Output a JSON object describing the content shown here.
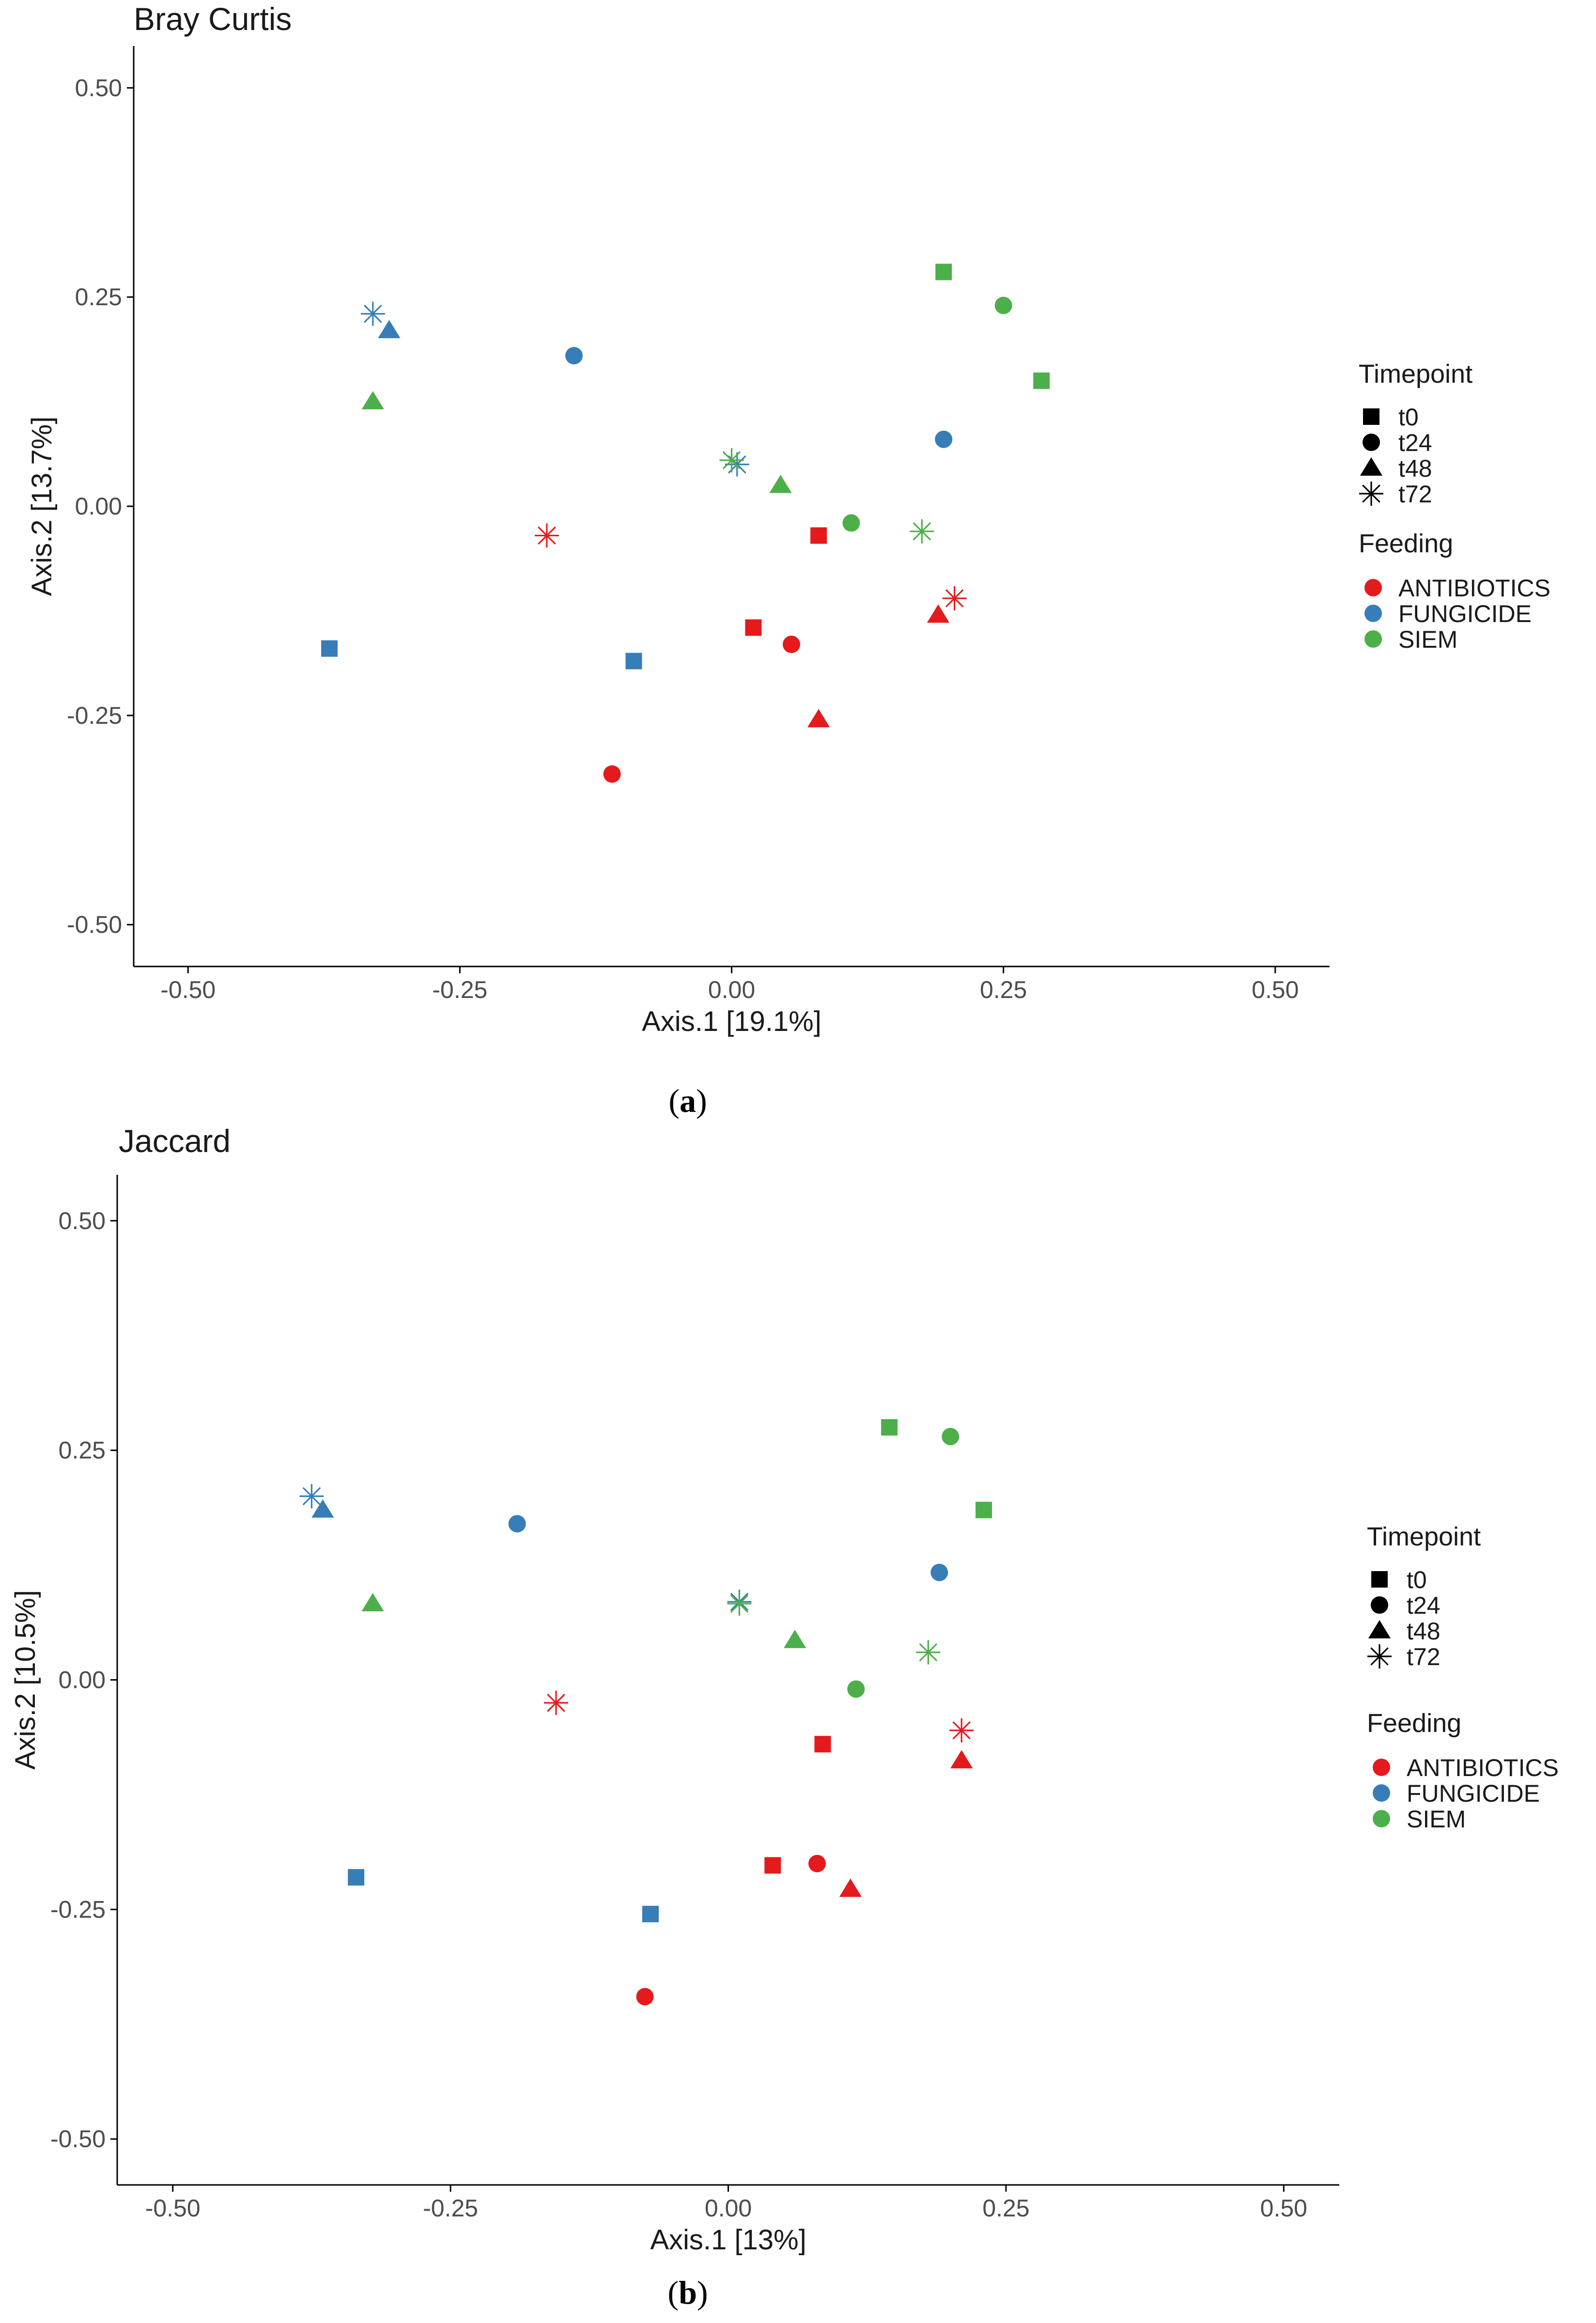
{
  "colors": {
    "ANTIBIOTICS": "#E41A1C",
    "FUNGICIDE": "#377EB8",
    "SIEM": "#4DAF4A",
    "axis": "#000000",
    "text": "#1a1a1a",
    "tick_text": "#4d4d4d",
    "legend_shape": "#000000"
  },
  "chart_data": [
    {
      "type": "scatter",
      "title": "Bray Curtis",
      "caption": "a",
      "caption_open": "(",
      "caption_close": ")",
      "xlabel": "Axis.1   [19.1%]",
      "ylabel": "Axis.2   [13.7%]",
      "xlim": [
        -0.55,
        0.55
      ],
      "ylim": [
        -0.55,
        0.55
      ],
      "xticks": [
        -0.5,
        -0.25,
        0.0,
        0.25,
        0.5
      ],
      "yticks": [
        -0.5,
        -0.25,
        0.0,
        0.25,
        0.5
      ],
      "xtick_labels": [
        "-0.50",
        "-0.25",
        "0.00",
        "0.25",
        "0.50"
      ],
      "ytick_labels": [
        "-0.50",
        "-0.25",
        "0.00",
        "0.25",
        "0.50"
      ],
      "grid": false,
      "legend": {
        "placement": "right",
        "shape_title": "Timepoint",
        "shapes": [
          {
            "label": "t0",
            "shape": "square"
          },
          {
            "label": "t24",
            "shape": "circle"
          },
          {
            "label": "t48",
            "shape": "triangle"
          },
          {
            "label": "t72",
            "shape": "star"
          }
        ],
        "color_title": "Feeding",
        "colors": [
          {
            "label": "ANTIBIOTICS",
            "group": "ANTIBIOTICS"
          },
          {
            "label": "FUNGICIDE",
            "group": "FUNGICIDE"
          },
          {
            "label": "SIEM",
            "group": "SIEM"
          }
        ]
      },
      "points": [
        {
          "x": -0.33,
          "y": 0.23,
          "group": "FUNGICIDE",
          "shape": "star"
        },
        {
          "x": -0.315,
          "y": 0.21,
          "group": "FUNGICIDE",
          "shape": "triangle"
        },
        {
          "x": -0.145,
          "y": 0.18,
          "group": "FUNGICIDE",
          "shape": "circle"
        },
        {
          "x": 0.005,
          "y": 0.05,
          "group": "FUNGICIDE",
          "shape": "star"
        },
        {
          "x": 0.195,
          "y": 0.08,
          "group": "FUNGICIDE",
          "shape": "circle"
        },
        {
          "x": -0.37,
          "y": -0.17,
          "group": "FUNGICIDE",
          "shape": "square"
        },
        {
          "x": -0.09,
          "y": -0.185,
          "group": "FUNGICIDE",
          "shape": "square"
        },
        {
          "x": 0.195,
          "y": 0.28,
          "group": "SIEM",
          "shape": "square"
        },
        {
          "x": 0.25,
          "y": 0.24,
          "group": "SIEM",
          "shape": "circle"
        },
        {
          "x": 0.285,
          "y": 0.15,
          "group": "SIEM",
          "shape": "square"
        },
        {
          "x": -0.33,
          "y": 0.125,
          "group": "SIEM",
          "shape": "triangle"
        },
        {
          "x": 0.0,
          "y": 0.055,
          "group": "SIEM",
          "shape": "star"
        },
        {
          "x": 0.045,
          "y": 0.025,
          "group": "SIEM",
          "shape": "triangle"
        },
        {
          "x": 0.11,
          "y": -0.02,
          "group": "SIEM",
          "shape": "circle"
        },
        {
          "x": 0.175,
          "y": -0.03,
          "group": "SIEM",
          "shape": "star"
        },
        {
          "x": -0.17,
          "y": -0.035,
          "group": "ANTIBIOTICS",
          "shape": "star"
        },
        {
          "x": 0.08,
          "y": -0.035,
          "group": "ANTIBIOTICS",
          "shape": "square"
        },
        {
          "x": 0.205,
          "y": -0.11,
          "group": "ANTIBIOTICS",
          "shape": "star"
        },
        {
          "x": 0.19,
          "y": -0.13,
          "group": "ANTIBIOTICS",
          "shape": "triangle"
        },
        {
          "x": 0.02,
          "y": -0.145,
          "group": "ANTIBIOTICS",
          "shape": "square"
        },
        {
          "x": 0.055,
          "y": -0.165,
          "group": "ANTIBIOTICS",
          "shape": "circle"
        },
        {
          "x": 0.08,
          "y": -0.255,
          "group": "ANTIBIOTICS",
          "shape": "triangle"
        },
        {
          "x": -0.11,
          "y": -0.32,
          "group": "ANTIBIOTICS",
          "shape": "circle"
        }
      ]
    },
    {
      "type": "scatter",
      "title": "Jaccard",
      "caption": "b",
      "caption_open": "(",
      "caption_close": ")",
      "xlabel": "Axis.1   [13%]",
      "ylabel": "Axis.2   [10.5%]",
      "xlim": [
        -0.55,
        0.55
      ],
      "ylim": [
        -0.55,
        0.55
      ],
      "xticks": [
        -0.5,
        -0.25,
        0.0,
        0.25,
        0.5
      ],
      "yticks": [
        -0.5,
        -0.25,
        0.0,
        0.25,
        0.5
      ],
      "xtick_labels": [
        "-0.50",
        "-0.25",
        "0.00",
        "0.25",
        "0.50"
      ],
      "ytick_labels": [
        "-0.50",
        "-0.25",
        "0.00",
        "0.25",
        "0.50"
      ],
      "grid": false,
      "legend": {
        "placement": "right",
        "shape_title": "Timepoint",
        "shapes": [
          {
            "label": "t0",
            "shape": "square"
          },
          {
            "label": "t24",
            "shape": "circle"
          },
          {
            "label": "t48",
            "shape": "triangle"
          },
          {
            "label": "t72",
            "shape": "star"
          }
        ],
        "color_title": "Feeding",
        "colors": [
          {
            "label": "ANTIBIOTICS",
            "group": "ANTIBIOTICS"
          },
          {
            "label": "FUNGICIDE",
            "group": "FUNGICIDE"
          },
          {
            "label": "SIEM",
            "group": "SIEM"
          }
        ]
      },
      "points": [
        {
          "x": -0.375,
          "y": 0.2,
          "group": "FUNGICIDE",
          "shape": "star"
        },
        {
          "x": -0.365,
          "y": 0.185,
          "group": "FUNGICIDE",
          "shape": "triangle"
        },
        {
          "x": -0.19,
          "y": 0.17,
          "group": "FUNGICIDE",
          "shape": "circle"
        },
        {
          "x": 0.19,
          "y": 0.117,
          "group": "FUNGICIDE",
          "shape": "circle"
        },
        {
          "x": 0.01,
          "y": 0.085,
          "group": "FUNGICIDE",
          "shape": "star"
        },
        {
          "x": -0.335,
          "y": -0.215,
          "group": "FUNGICIDE",
          "shape": "square"
        },
        {
          "x": -0.07,
          "y": -0.255,
          "group": "FUNGICIDE",
          "shape": "square"
        },
        {
          "x": 0.145,
          "y": 0.275,
          "group": "SIEM",
          "shape": "square"
        },
        {
          "x": 0.2,
          "y": 0.265,
          "group": "SIEM",
          "shape": "circle"
        },
        {
          "x": 0.23,
          "y": 0.185,
          "group": "SIEM",
          "shape": "square"
        },
        {
          "x": -0.32,
          "y": 0.083,
          "group": "SIEM",
          "shape": "triangle"
        },
        {
          "x": 0.01,
          "y": 0.083,
          "group": "SIEM",
          "shape": "star"
        },
        {
          "x": 0.06,
          "y": 0.043,
          "group": "SIEM",
          "shape": "triangle"
        },
        {
          "x": 0.18,
          "y": 0.03,
          "group": "SIEM",
          "shape": "star"
        },
        {
          "x": 0.115,
          "y": -0.01,
          "group": "SIEM",
          "shape": "circle"
        },
        {
          "x": -0.155,
          "y": -0.025,
          "group": "ANTIBIOTICS",
          "shape": "star"
        },
        {
          "x": 0.21,
          "y": -0.055,
          "group": "ANTIBIOTICS",
          "shape": "star"
        },
        {
          "x": 0.085,
          "y": -0.07,
          "group": "ANTIBIOTICS",
          "shape": "square"
        },
        {
          "x": 0.21,
          "y": -0.088,
          "group": "ANTIBIOTICS",
          "shape": "triangle"
        },
        {
          "x": 0.04,
          "y": -0.202,
          "group": "ANTIBIOTICS",
          "shape": "square"
        },
        {
          "x": 0.08,
          "y": -0.2,
          "group": "ANTIBIOTICS",
          "shape": "circle"
        },
        {
          "x": 0.11,
          "y": -0.228,
          "group": "ANTIBIOTICS",
          "shape": "triangle"
        },
        {
          "x": -0.075,
          "y": -0.345,
          "group": "ANTIBIOTICS",
          "shape": "circle"
        }
      ]
    }
  ]
}
